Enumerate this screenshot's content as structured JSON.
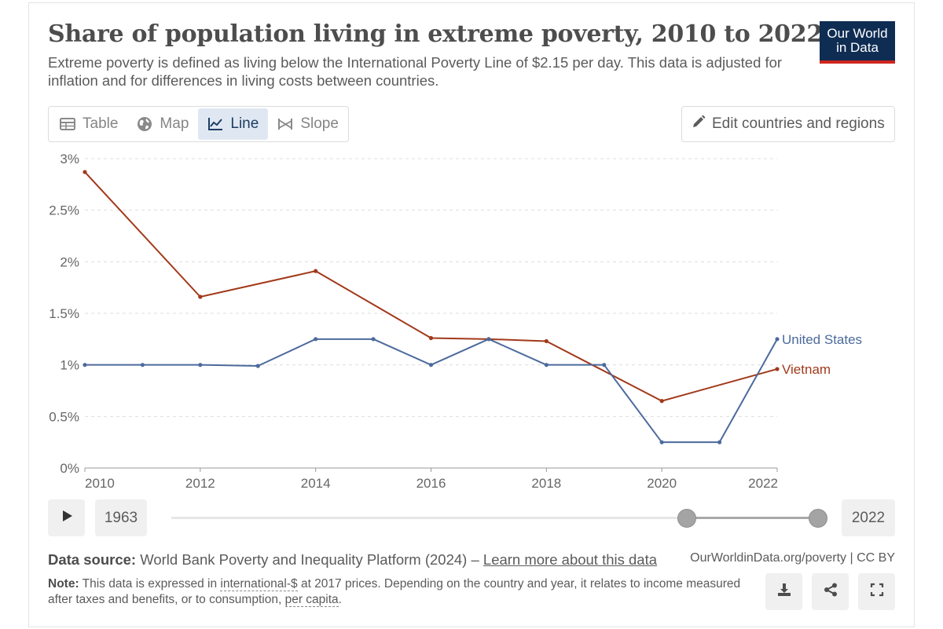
{
  "header": {
    "title": "Share of population living in extreme poverty, 2010 to 2022",
    "subtitle": "Extreme poverty is defined as living below the International Poverty Line of $2.15 per day. This data is adjusted for inflation and for differences in living costs between countries.",
    "logo_line1": "Our World",
    "logo_line2": "in Data"
  },
  "tabs": [
    {
      "label": "Table",
      "icon": "table-icon"
    },
    {
      "label": "Map",
      "icon": "globe-icon"
    },
    {
      "label": "Line",
      "icon": "line-chart-icon",
      "active": true
    },
    {
      "label": "Slope",
      "icon": "slope-icon"
    }
  ],
  "edit_button": {
    "label": "Edit countries and regions",
    "icon": "pencil-icon"
  },
  "timeline": {
    "start_year": "1963",
    "end_year": "2022",
    "selected_start_fraction": 0.79,
    "selected_end_fraction": 1.0
  },
  "footer": {
    "source_label": "Data source:",
    "source_text": "World Bank Poverty and Inequality Platform (2024) –",
    "source_link": "Learn more about this data",
    "site": "OurWorldinData.org/poverty | CC BY",
    "note_label": "Note:",
    "note_part1": "This data is expressed in",
    "note_link1": "international-$",
    "note_part2": "at 2017 prices. Depending on the country and year, it relates to income measured after taxes and benefits, or to consumption,",
    "note_link2": "per capita",
    "note_part3": "."
  },
  "colors": {
    "vietnam": "#a2391a",
    "united_states": "#4c6a9c",
    "grid": "#dddddd",
    "axis_text": "#666666"
  },
  "chart_data": {
    "type": "line",
    "title": "Share of population living in extreme poverty, 2010 to 2022",
    "xlabel": "",
    "ylabel": "",
    "xlim": [
      2010,
      2022
    ],
    "ylim": [
      0,
      3
    ],
    "x_ticks": [
      2010,
      2012,
      2014,
      2016,
      2018,
      2020,
      2022
    ],
    "y_ticks": [
      0,
      0.5,
      1,
      1.5,
      2,
      2.5,
      3
    ],
    "y_tick_labels": [
      "0%",
      "0.5%",
      "1%",
      "1.5%",
      "2%",
      "2.5%",
      "3%"
    ],
    "grid": true,
    "series": [
      {
        "name": "Vietnam",
        "color": "#a2391a",
        "points": [
          [
            2010,
            2.87
          ],
          [
            2012,
            1.66
          ],
          [
            2014,
            1.91
          ],
          [
            2016,
            1.26
          ],
          [
            2017,
            1.25
          ],
          [
            2018,
            1.23
          ],
          [
            2020,
            0.65
          ],
          [
            2022,
            0.96
          ]
        ]
      },
      {
        "name": "United States",
        "color": "#4c6a9c",
        "points": [
          [
            2010,
            1.0
          ],
          [
            2011,
            1.0
          ],
          [
            2012,
            1.0
          ],
          [
            2013,
            0.99
          ],
          [
            2014,
            1.25
          ],
          [
            2015,
            1.25
          ],
          [
            2016,
            1.0
          ],
          [
            2017,
            1.25
          ],
          [
            2018,
            1.0
          ],
          [
            2019,
            1.0
          ],
          [
            2020,
            0.25
          ],
          [
            2021,
            0.25
          ],
          [
            2022,
            1.25
          ]
        ]
      }
    ]
  }
}
